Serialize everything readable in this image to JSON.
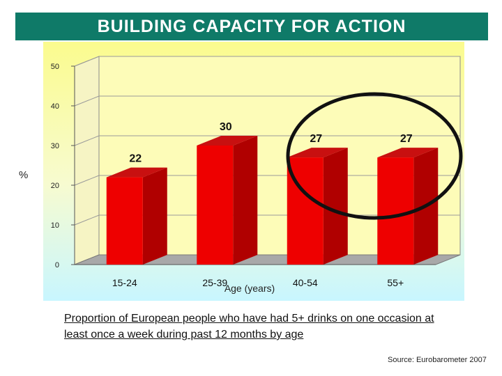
{
  "title": "BUILDING CAPACITY FOR ACTION",
  "ylabel": "%",
  "caption": "Proportion of European people who have had 5+ drinks on one occasion at least once a week during past 12 months by age",
  "source": "Source: Eurobarometer 2007",
  "colors": {
    "title_bg": "#0f7a68",
    "bar_front": "#ee0000",
    "bar_side": "#b00000",
    "bar_top": "#c81010",
    "wall": "#fdfcb8",
    "floor": "#a8a8a8",
    "circle": "#111111"
  },
  "chart_data": {
    "type": "bar",
    "categories": [
      "15-24",
      "25-39",
      "40-54",
      "55+"
    ],
    "values": [
      22,
      30,
      27,
      27
    ],
    "data_labels": [
      "22",
      "30",
      "27",
      "27"
    ],
    "xlabel": "Age (years)",
    "ylabel": "%",
    "ylim": [
      0,
      50
    ],
    "yticks": [
      0,
      10,
      20,
      30,
      40,
      50
    ],
    "grid": true,
    "annotation": "ellipse highlighting the 40-54 and 55+ bars"
  }
}
